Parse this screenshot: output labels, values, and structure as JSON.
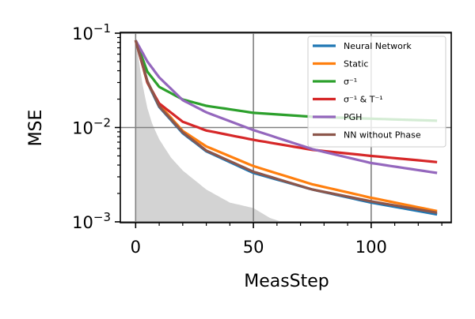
{
  "chart_data": {
    "type": "line",
    "xlabel": "MeasStep",
    "ylabel": "MSE",
    "yscale": "log",
    "xlim": [
      -6.5,
      134
    ],
    "ylim": [
      0.00098,
      0.102
    ],
    "xticks": [
      0,
      50,
      100
    ],
    "xtick_labels": [
      "0",
      "50",
      "100"
    ],
    "yticks": [
      0.001,
      0.01,
      0.1
    ],
    "ytick_labels": [
      {
        "base": "10",
        "exp": "−3"
      },
      {
        "base": "10",
        "exp": "−2"
      },
      {
        "base": "10",
        "exp": "−1"
      }
    ],
    "grid": true,
    "legend_position": "top-right",
    "x": [
      0,
      5,
      10,
      20,
      30,
      50,
      75,
      100,
      128
    ],
    "series": [
      {
        "name": "Neural Network",
        "color": "#1f77b4",
        "values": [
          0.084,
          0.03,
          0.0165,
          0.0087,
          0.0056,
          0.0033,
          0.0022,
          0.0016,
          0.0012
        ]
      },
      {
        "name": "Static",
        "color": "#ff7f0e",
        "values": [
          0.084,
          0.03,
          0.0175,
          0.0092,
          0.0063,
          0.0039,
          0.0025,
          0.0018,
          0.0013
        ]
      },
      {
        "name": "σ⁻¹",
        "color": "#2ca02c",
        "values": [
          0.084,
          0.039,
          0.027,
          0.0198,
          0.017,
          0.0143,
          0.013,
          0.0124,
          0.0118
        ]
      },
      {
        "name": "σ⁻¹ & T⁻¹",
        "color": "#d62728",
        "values": [
          0.084,
          0.03,
          0.018,
          0.0115,
          0.0093,
          0.0074,
          0.0058,
          0.005,
          0.0043
        ]
      },
      {
        "name": "PGH",
        "color": "#9467bd",
        "values": [
          0.084,
          0.05,
          0.034,
          0.0195,
          0.0145,
          0.0094,
          0.0059,
          0.0042,
          0.0033
        ]
      },
      {
        "name": "NN without Phase",
        "color": "#8c564b",
        "values": [
          0.084,
          0.031,
          0.0168,
          0.0089,
          0.0057,
          0.0034,
          0.0022,
          0.00165,
          0.00125
        ]
      }
    ],
    "shaded_region": {
      "color": "#d3d3d3",
      "x": [
        0,
        1,
        2,
        3,
        5,
        7,
        10,
        15,
        20,
        30,
        40,
        50,
        57,
        63
      ],
      "values": [
        0.084,
        0.06,
        0.04,
        0.028,
        0.016,
        0.011,
        0.0075,
        0.0048,
        0.0035,
        0.0022,
        0.0016,
        0.0014,
        0.0011,
        0.00098
      ]
    }
  }
}
